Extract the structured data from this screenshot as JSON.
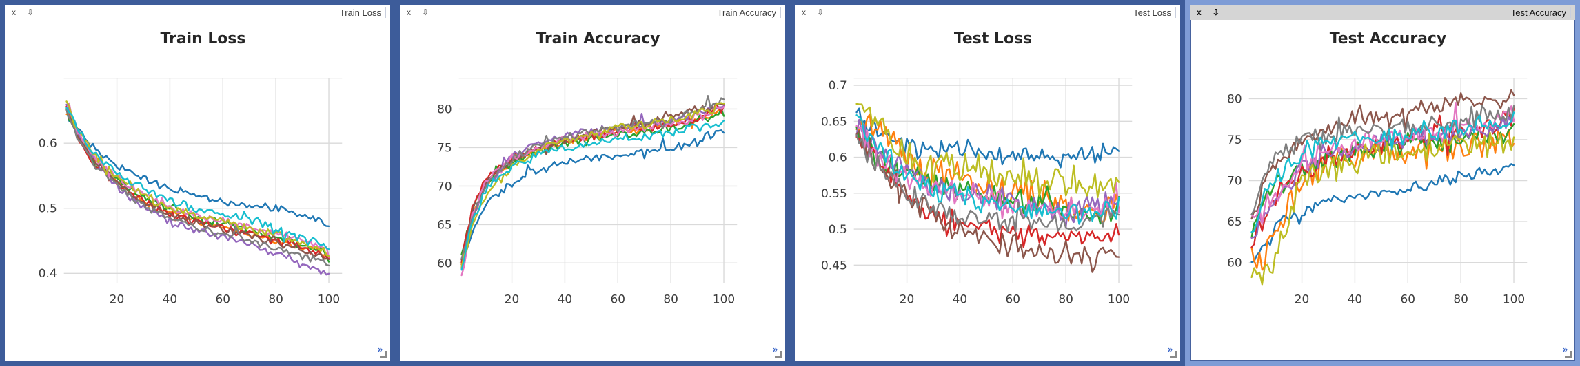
{
  "colors": {
    "border": "#3d5c9a",
    "border_active": "#7e9cd6",
    "titlebar_bg": "#ffffff",
    "titlebar_active_bg": "#d5d5d5",
    "expand_icon_color": "#3a66c8",
    "grip_color": "#8a8a8a",
    "grid": "#dadada",
    "tick_label": "#3d3d3d",
    "chart_title": "#262626"
  },
  "panes": [
    {
      "window_title": "Train Loss",
      "close_label": "x",
      "dock_icon": "⇩",
      "expand_icon": "»",
      "active": false
    },
    {
      "window_title": "Train Accuracy",
      "close_label": "x",
      "dock_icon": "⇩",
      "expand_icon": "»",
      "active": false
    },
    {
      "window_title": "Test Loss",
      "close_label": "x",
      "dock_icon": "⇩",
      "expand_icon": "»",
      "active": false
    },
    {
      "window_title": "Test Accuracy",
      "close_label": "x",
      "dock_icon": "⇩",
      "expand_icon": "»",
      "active": true
    }
  ],
  "chart_data": [
    {
      "type": "line",
      "title": "Train Loss",
      "xlabel": "",
      "ylabel": "",
      "grid": true,
      "legend": "none",
      "xlim": [
        0,
        105
      ],
      "xticks": [
        20,
        40,
        60,
        80,
        100
      ],
      "ylim": [
        0.385,
        0.7
      ],
      "yticks": [
        0.4,
        0.5,
        0.6
      ],
      "yticklabels": [
        "0.4",
        "0.5",
        "0.6"
      ],
      "x": [
        1,
        5,
        10,
        20,
        30,
        40,
        50,
        60,
        70,
        80,
        90,
        100
      ],
      "series": [
        {
          "name": "blue",
          "color": "#1f77b4",
          "noise": 0.004,
          "values": [
            0.655,
            0.625,
            0.6,
            0.565,
            0.545,
            0.53,
            0.52,
            0.51,
            0.505,
            0.5,
            0.49,
            0.475
          ]
        },
        {
          "name": "orange",
          "color": "#ff7f0e",
          "noise": 0.004,
          "values": [
            0.652,
            0.618,
            0.585,
            0.54,
            0.51,
            0.495,
            0.48,
            0.47,
            0.46,
            0.45,
            0.44,
            0.43
          ]
        },
        {
          "name": "green",
          "color": "#2ca02c",
          "noise": 0.005,
          "values": [
            0.65,
            0.615,
            0.58,
            0.545,
            0.515,
            0.5,
            0.485,
            0.475,
            0.465,
            0.455,
            0.445,
            0.43
          ]
        },
        {
          "name": "red",
          "color": "#d62728",
          "noise": 0.005,
          "values": [
            0.655,
            0.612,
            0.575,
            0.535,
            0.51,
            0.49,
            0.48,
            0.47,
            0.46,
            0.45,
            0.44,
            0.425
          ]
        },
        {
          "name": "purple",
          "color": "#9467bd",
          "noise": 0.005,
          "values": [
            0.66,
            0.618,
            0.58,
            0.535,
            0.5,
            0.48,
            0.465,
            0.455,
            0.445,
            0.43,
            0.415,
            0.398
          ]
        },
        {
          "name": "brown",
          "color": "#8c564b",
          "noise": 0.004,
          "values": [
            0.65,
            0.615,
            0.58,
            0.54,
            0.51,
            0.49,
            0.478,
            0.468,
            0.458,
            0.448,
            0.435,
            0.42
          ]
        },
        {
          "name": "pink",
          "color": "#e377c2",
          "noise": 0.005,
          "values": [
            0.655,
            0.62,
            0.585,
            0.545,
            0.52,
            0.5,
            0.49,
            0.48,
            0.47,
            0.46,
            0.45,
            0.435
          ]
        },
        {
          "name": "gray",
          "color": "#7f7f7f",
          "noise": 0.005,
          "values": [
            0.65,
            0.612,
            0.575,
            0.535,
            0.505,
            0.485,
            0.472,
            0.462,
            0.452,
            0.44,
            0.428,
            0.415
          ]
        },
        {
          "name": "olive",
          "color": "#bcbd22",
          "noise": 0.005,
          "values": [
            0.66,
            0.622,
            0.59,
            0.55,
            0.52,
            0.5,
            0.49,
            0.48,
            0.47,
            0.46,
            0.448,
            0.432
          ]
        },
        {
          "name": "cyan",
          "color": "#17becf",
          "noise": 0.006,
          "values": [
            0.658,
            0.624,
            0.59,
            0.555,
            0.53,
            0.51,
            0.5,
            0.49,
            0.48,
            0.468,
            0.455,
            0.44
          ]
        }
      ]
    },
    {
      "type": "line",
      "title": "Train Accuracy",
      "xlabel": "",
      "ylabel": "",
      "grid": true,
      "legend": "none",
      "xlim": [
        0,
        105
      ],
      "xticks": [
        20,
        40,
        60,
        80,
        100
      ],
      "ylim": [
        57.4,
        84.0
      ],
      "yticks": [
        60,
        65,
        70,
        75,
        80
      ],
      "yticklabels": [
        "60",
        "65",
        "70",
        "75",
        "80"
      ],
      "x": [
        1,
        5,
        10,
        20,
        30,
        40,
        50,
        60,
        70,
        80,
        90,
        100
      ],
      "series": [
        {
          "name": "blue",
          "color": "#1f77b4",
          "noise": 0.45,
          "values": [
            59.5,
            64.0,
            67.5,
            70.5,
            72.0,
            73.0,
            73.5,
            74.0,
            74.5,
            75.0,
            76.0,
            77.5
          ]
        },
        {
          "name": "orange",
          "color": "#ff7f0e",
          "noise": 0.4,
          "values": [
            60.0,
            66.0,
            70.0,
            73.0,
            74.5,
            75.5,
            76.5,
            77.0,
            77.5,
            78.0,
            78.5,
            80.0
          ]
        },
        {
          "name": "green",
          "color": "#2ca02c",
          "noise": 0.45,
          "values": [
            61.0,
            66.5,
            70.5,
            73.0,
            74.5,
            75.5,
            76.0,
            76.5,
            77.0,
            77.5,
            78.5,
            79.5
          ]
        },
        {
          "name": "red",
          "color": "#d62728",
          "noise": 0.45,
          "values": [
            60.0,
            67.0,
            71.0,
            73.5,
            75.0,
            76.0,
            76.5,
            77.0,
            77.5,
            78.0,
            78.5,
            80.0
          ]
        },
        {
          "name": "purple",
          "color": "#9467bd",
          "noise": 0.45,
          "values": [
            59.0,
            66.0,
            70.0,
            74.0,
            75.5,
            76.5,
            77.0,
            77.5,
            78.0,
            78.5,
            79.5,
            80.5
          ]
        },
        {
          "name": "brown",
          "color": "#8c564b",
          "noise": 0.4,
          "values": [
            60.5,
            66.5,
            70.5,
            73.5,
            75.0,
            76.0,
            77.0,
            77.5,
            78.0,
            79.0,
            80.0,
            80.5
          ]
        },
        {
          "name": "pink",
          "color": "#e377c2",
          "noise": 0.45,
          "values": [
            58.0,
            66.0,
            70.5,
            73.5,
            75.0,
            76.0,
            76.5,
            77.0,
            77.5,
            78.0,
            79.0,
            80.0
          ]
        },
        {
          "name": "gray",
          "color": "#7f7f7f",
          "noise": 0.4,
          "values": [
            60.0,
            66.0,
            70.0,
            73.5,
            75.5,
            76.5,
            77.0,
            77.5,
            78.0,
            78.5,
            80.0,
            81.0
          ]
        },
        {
          "name": "olive",
          "color": "#bcbd22",
          "noise": 0.45,
          "values": [
            59.5,
            64.5,
            68.5,
            72.5,
            74.5,
            76.0,
            76.5,
            77.5,
            78.0,
            78.5,
            79.5,
            80.5
          ]
        },
        {
          "name": "cyan",
          "color": "#17becf",
          "noise": 0.45,
          "values": [
            59.0,
            65.5,
            69.5,
            72.5,
            74.0,
            75.0,
            75.5,
            76.0,
            76.5,
            77.0,
            77.5,
            78.5
          ]
        }
      ]
    },
    {
      "type": "line",
      "title": "Test Loss",
      "xlabel": "",
      "ylabel": "",
      "grid": true,
      "legend": "none",
      "xlim": [
        0,
        105
      ],
      "xticks": [
        20,
        40,
        60,
        80,
        100
      ],
      "ylim": [
        0.425,
        0.71
      ],
      "yticks": [
        0.45,
        0.5,
        0.55,
        0.6,
        0.65,
        0.7
      ],
      "yticklabels": [
        "0.45",
        "0.5",
        "0.55",
        "0.6",
        "0.65",
        "0.7"
      ],
      "x": [
        1,
        5,
        10,
        20,
        30,
        40,
        50,
        60,
        70,
        80,
        90,
        100
      ],
      "series": [
        {
          "name": "blue",
          "color": "#1f77b4",
          "noise": 0.01,
          "values": [
            0.66,
            0.645,
            0.635,
            0.615,
            0.61,
            0.615,
            0.605,
            0.6,
            0.6,
            0.6,
            0.6,
            0.615
          ]
        },
        {
          "name": "orange",
          "color": "#ff7f0e",
          "noise": 0.018,
          "values": [
            0.645,
            0.66,
            0.64,
            0.6,
            0.575,
            0.57,
            0.56,
            0.55,
            0.545,
            0.54,
            0.53,
            0.525
          ]
        },
        {
          "name": "green",
          "color": "#2ca02c",
          "noise": 0.014,
          "values": [
            0.64,
            0.615,
            0.6,
            0.575,
            0.56,
            0.555,
            0.55,
            0.545,
            0.54,
            0.53,
            0.52,
            0.53
          ]
        },
        {
          "name": "red",
          "color": "#d62728",
          "noise": 0.012,
          "values": [
            0.64,
            0.61,
            0.59,
            0.545,
            0.52,
            0.51,
            0.5,
            0.495,
            0.49,
            0.485,
            0.49,
            0.495
          ]
        },
        {
          "name": "purple",
          "color": "#9467bd",
          "noise": 0.014,
          "values": [
            0.65,
            0.625,
            0.61,
            0.58,
            0.56,
            0.55,
            0.545,
            0.535,
            0.53,
            0.52,
            0.53,
            0.54
          ]
        },
        {
          "name": "brown",
          "color": "#8c564b",
          "noise": 0.014,
          "values": [
            0.638,
            0.605,
            0.59,
            0.545,
            0.52,
            0.5,
            0.49,
            0.475,
            0.46,
            0.465,
            0.455,
            0.47
          ]
        },
        {
          "name": "pink",
          "color": "#e377c2",
          "noise": 0.012,
          "values": [
            0.645,
            0.62,
            0.6,
            0.575,
            0.555,
            0.545,
            0.54,
            0.535,
            0.53,
            0.525,
            0.53,
            0.535
          ]
        },
        {
          "name": "gray",
          "color": "#7f7f7f",
          "noise": 0.011,
          "values": [
            0.635,
            0.605,
            0.585,
            0.55,
            0.53,
            0.52,
            0.515,
            0.51,
            0.51,
            0.505,
            0.51,
            0.52
          ]
        },
        {
          "name": "olive",
          "color": "#bcbd22",
          "noise": 0.017,
          "values": [
            0.675,
            0.655,
            0.645,
            0.6,
            0.585,
            0.585,
            0.58,
            0.575,
            0.57,
            0.565,
            0.56,
            0.58
          ]
        },
        {
          "name": "cyan",
          "color": "#17becf",
          "noise": 0.013,
          "values": [
            0.655,
            0.63,
            0.61,
            0.575,
            0.555,
            0.545,
            0.54,
            0.535,
            0.53,
            0.525,
            0.52,
            0.535
          ]
        }
      ]
    },
    {
      "type": "line",
      "title": "Test Accuracy",
      "xlabel": "",
      "ylabel": "",
      "grid": true,
      "legend": "none",
      "xlim": [
        0,
        105
      ],
      "xticks": [
        20,
        40,
        60,
        80,
        100
      ],
      "ylim": [
        57.5,
        82.5
      ],
      "yticks": [
        60,
        65,
        70,
        75,
        80
      ],
      "yticklabels": [
        "60",
        "65",
        "70",
        "75",
        "80"
      ],
      "x": [
        1,
        5,
        10,
        20,
        30,
        40,
        50,
        60,
        70,
        80,
        90,
        100
      ],
      "series": [
        {
          "name": "blue",
          "color": "#1f77b4",
          "noise": 0.55,
          "values": [
            60.0,
            62.0,
            64.5,
            66.5,
            67.5,
            68.0,
            68.5,
            69.0,
            70.0,
            70.5,
            71.0,
            72.0
          ]
        },
        {
          "name": "orange",
          "color": "#ff7f0e",
          "noise": 1.3,
          "values": [
            61.0,
            60.5,
            63.5,
            70.0,
            72.5,
            73.0,
            73.5,
            73.5,
            74.0,
            74.0,
            74.5,
            75.5
          ]
        },
        {
          "name": "green",
          "color": "#2ca02c",
          "noise": 0.95,
          "values": [
            63.5,
            67.0,
            70.0,
            71.5,
            72.5,
            73.5,
            74.0,
            74.5,
            75.0,
            75.0,
            75.5,
            76.0
          ]
        },
        {
          "name": "red",
          "color": "#d62728",
          "noise": 0.95,
          "values": [
            61.5,
            65.0,
            68.0,
            71.0,
            73.0,
            74.0,
            74.5,
            75.0,
            75.5,
            76.0,
            76.5,
            78.0
          ]
        },
        {
          "name": "purple",
          "color": "#9467bd",
          "noise": 0.95,
          "values": [
            63.0,
            65.5,
            67.5,
            71.5,
            73.5,
            74.0,
            74.5,
            75.0,
            75.5,
            76.0,
            76.0,
            77.0
          ]
        },
        {
          "name": "brown",
          "color": "#8c564b",
          "noise": 0.8,
          "values": [
            64.5,
            69.0,
            72.5,
            75.0,
            76.5,
            78.0,
            78.0,
            78.5,
            79.0,
            79.5,
            79.5,
            80.0
          ]
        },
        {
          "name": "pink",
          "color": "#e377c2",
          "noise": 0.95,
          "values": [
            65.0,
            66.5,
            68.0,
            72.0,
            74.0,
            74.5,
            75.0,
            75.5,
            76.0,
            76.5,
            77.0,
            78.0
          ]
        },
        {
          "name": "gray",
          "color": "#7f7f7f",
          "noise": 0.95,
          "values": [
            66.0,
            70.5,
            72.5,
            74.5,
            75.5,
            76.5,
            76.0,
            76.5,
            77.0,
            77.5,
            78.0,
            78.5
          ]
        },
        {
          "name": "olive",
          "color": "#bcbd22",
          "noise": 1.2,
          "values": [
            59.0,
            58.5,
            60.5,
            70.5,
            71.5,
            72.5,
            73.0,
            73.5,
            74.0,
            74.5,
            74.5,
            75.0
          ]
        },
        {
          "name": "cyan",
          "color": "#17becf",
          "noise": 0.85,
          "values": [
            63.5,
            67.5,
            70.0,
            73.5,
            74.5,
            75.0,
            75.5,
            75.5,
            76.0,
            76.5,
            77.0,
            77.5
          ]
        }
      ]
    }
  ]
}
